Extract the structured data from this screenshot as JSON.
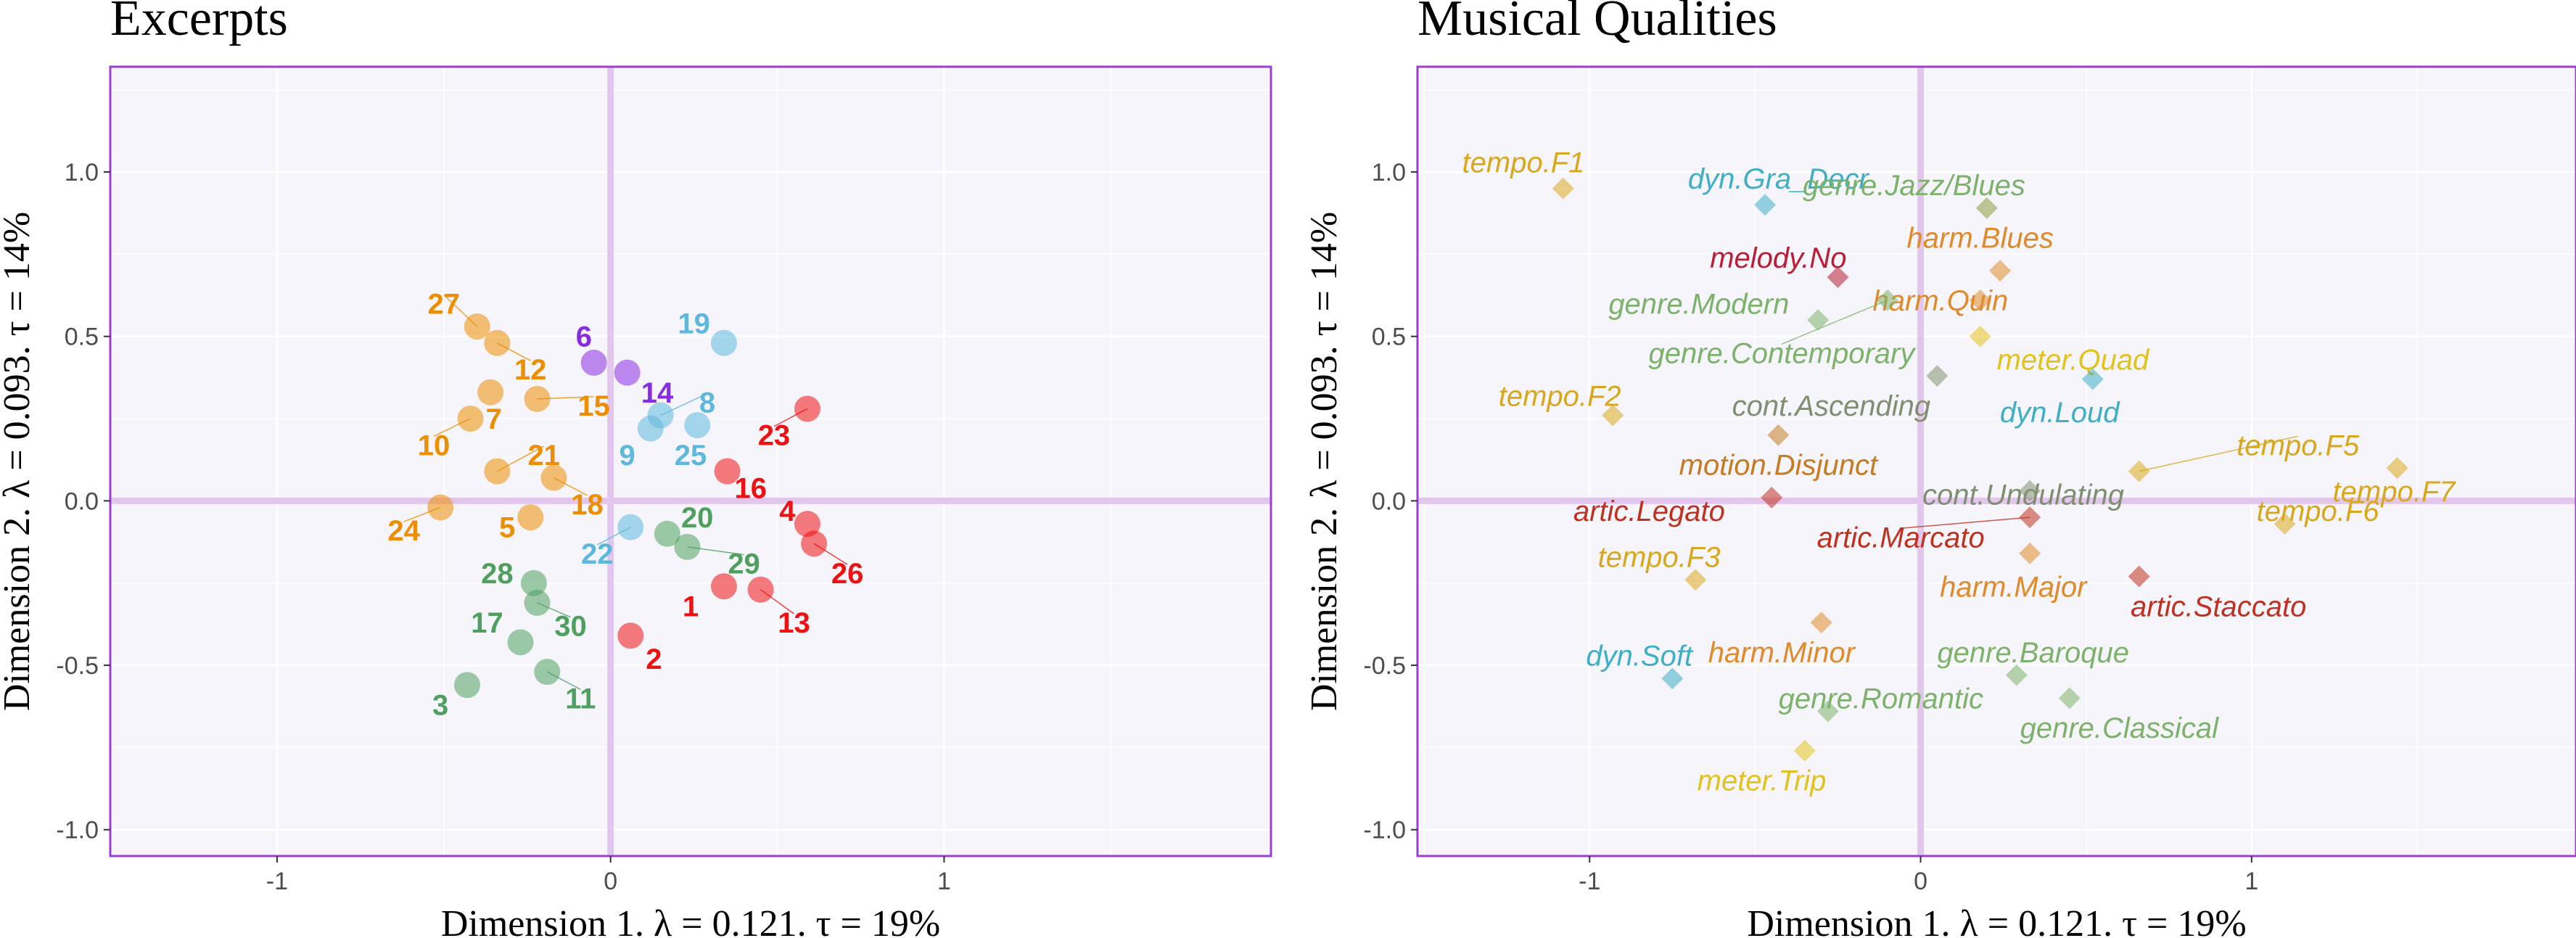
{
  "chart_data": [
    {
      "type": "scatter",
      "title": "Excerpts",
      "xlabel": "Dimension 1.   λ = 0.121.   τ = 19%",
      "ylabel": "Dimension 2.   λ = 0.093.   τ = 14%",
      "xlim": [
        -1.5,
        1.98
      ],
      "ylim": [
        -1.08,
        1.32
      ],
      "xticks": [
        {
          "value": -1,
          "label": "-1"
        },
        {
          "value": 0,
          "label": "0"
        },
        {
          "value": 1,
          "label": "1"
        }
      ],
      "yticks": [
        {
          "value": -1.0,
          "label": "-1.0"
        },
        {
          "value": -0.5,
          "label": "-0.5"
        },
        {
          "value": 0.0,
          "label": "0.0"
        },
        {
          "value": 0.5,
          "label": "0.5"
        },
        {
          "value": 1.0,
          "label": "1.0"
        }
      ],
      "colors": {
        "orange": "#ED8E00",
        "purple": "#8A2BE2",
        "blue": "#5DB8DC",
        "green": "#4FA05F",
        "red": "#EE1111"
      },
      "points": [
        {
          "id": "27",
          "x": -0.4,
          "y": 0.53,
          "group": "orange",
          "lx": -0.5,
          "ly": 0.6
        },
        {
          "id": "12",
          "x": -0.34,
          "y": 0.48,
          "group": "orange",
          "lx": -0.24,
          "ly": 0.4
        },
        {
          "id": "7",
          "x": -0.36,
          "y": 0.33,
          "group": "orange",
          "lx": -0.35,
          "ly": 0.25
        },
        {
          "id": "15",
          "x": -0.22,
          "y": 0.31,
          "group": "orange",
          "lx": -0.05,
          "ly": 0.29
        },
        {
          "id": "10",
          "x": -0.42,
          "y": 0.25,
          "group": "orange",
          "lx": -0.53,
          "ly": 0.17
        },
        {
          "id": "21",
          "x": -0.34,
          "y": 0.09,
          "group": "orange",
          "lx": -0.2,
          "ly": 0.14
        },
        {
          "id": "18",
          "x": -0.17,
          "y": 0.07,
          "group": "orange",
          "lx": -0.07,
          "ly": -0.01
        },
        {
          "id": "24",
          "x": -0.51,
          "y": -0.02,
          "group": "orange",
          "lx": -0.62,
          "ly": -0.09
        },
        {
          "id": "5",
          "x": -0.24,
          "y": -0.05,
          "group": "orange",
          "lx": -0.31,
          "ly": -0.08
        },
        {
          "id": "6",
          "x": -0.05,
          "y": 0.42,
          "group": "purple",
          "lx": -0.08,
          "ly": 0.5
        },
        {
          "id": "14",
          "x": 0.05,
          "y": 0.39,
          "group": "purple",
          "lx": 0.14,
          "ly": 0.33
        },
        {
          "id": "19",
          "x": 0.34,
          "y": 0.48,
          "group": "blue",
          "lx": 0.25,
          "ly": 0.54
        },
        {
          "id": "8",
          "x": 0.15,
          "y": 0.26,
          "group": "blue",
          "lx": 0.29,
          "ly": 0.3
        },
        {
          "id": "25",
          "x": 0.26,
          "y": 0.23,
          "group": "blue",
          "lx": 0.24,
          "ly": 0.14
        },
        {
          "id": "9",
          "x": 0.12,
          "y": 0.22,
          "group": "blue",
          "lx": 0.05,
          "ly": 0.14
        },
        {
          "id": "22",
          "x": 0.06,
          "y": -0.08,
          "group": "blue",
          "lx": -0.04,
          "ly": -0.16
        },
        {
          "id": "20",
          "x": 0.17,
          "y": -0.1,
          "group": "green",
          "lx": 0.26,
          "ly": -0.05
        },
        {
          "id": "29",
          "x": 0.23,
          "y": -0.14,
          "group": "green",
          "lx": 0.4,
          "ly": -0.19
        },
        {
          "id": "28",
          "x": -0.23,
          "y": -0.25,
          "group": "green",
          "lx": -0.34,
          "ly": -0.22
        },
        {
          "id": "17",
          "x": -0.27,
          "y": -0.43,
          "group": "green",
          "lx": -0.37,
          "ly": -0.37
        },
        {
          "id": "30",
          "x": -0.22,
          "y": -0.31,
          "group": "green",
          "lx": -0.12,
          "ly": -0.38
        },
        {
          "id": "3",
          "x": -0.43,
          "y": -0.56,
          "group": "green",
          "lx": -0.51,
          "ly": -0.62
        },
        {
          "id": "11",
          "x": -0.19,
          "y": -0.52,
          "group": "green",
          "lx": -0.09,
          "ly": -0.6
        },
        {
          "id": "23",
          "x": 0.59,
          "y": 0.28,
          "group": "red",
          "lx": 0.49,
          "ly": 0.2
        },
        {
          "id": "16",
          "x": 0.35,
          "y": 0.09,
          "group": "red",
          "lx": 0.42,
          "ly": 0.04
        },
        {
          "id": "4",
          "x": 0.59,
          "y": -0.07,
          "group": "red",
          "lx": 0.53,
          "ly": -0.03
        },
        {
          "id": "26",
          "x": 0.61,
          "y": -0.13,
          "group": "red",
          "lx": 0.71,
          "ly": -0.22
        },
        {
          "id": "1",
          "x": 0.34,
          "y": -0.26,
          "group": "red",
          "lx": 0.24,
          "ly": -0.32
        },
        {
          "id": "13",
          "x": 0.45,
          "y": -0.27,
          "group": "red",
          "lx": 0.55,
          "ly": -0.37
        },
        {
          "id": "2",
          "x": 0.06,
          "y": -0.41,
          "group": "red",
          "lx": 0.13,
          "ly": -0.48
        }
      ]
    },
    {
      "type": "scatter",
      "title": "Musical Qualities",
      "xlabel": "Dimension 1.   λ = 0.121.   τ = 19%",
      "ylabel": "Dimension 2.   λ = 0.093.   τ = 14%",
      "xlim": [
        -1.52,
        1.98
      ],
      "ylim": [
        -1.08,
        1.32
      ],
      "xticks": [
        {
          "value": -1,
          "label": "-1"
        },
        {
          "value": 0,
          "label": "0"
        },
        {
          "value": 1,
          "label": "1"
        }
      ],
      "yticks": [
        {
          "value": -1.0,
          "label": "-1.0"
        },
        {
          "value": -0.5,
          "label": "-0.5"
        },
        {
          "value": 0.0,
          "label": "0.0"
        },
        {
          "value": 0.5,
          "label": "0.5"
        },
        {
          "value": 1.0,
          "label": "1.0"
        }
      ],
      "colors": {
        "tempo": "#D9A71C",
        "dyn": "#3EAFC6",
        "genre": "#7DB26A",
        "genreDark": "#8A9A3A",
        "harm": "#E08A2A",
        "melody": "#B81E36",
        "meter": "#E2C21C",
        "cont": "#7F8F70",
        "artic": "#C0301E",
        "motion": "#C87A20"
      },
      "points": [
        {
          "id": "tempo.F1",
          "x": -1.08,
          "y": 0.95,
          "group": "tempo",
          "lx": -1.2,
          "ly": 1.03
        },
        {
          "id": "dyn.Gra_Decr",
          "x": -0.47,
          "y": 0.9,
          "group": "dyn",
          "lx": -0.43,
          "ly": 0.98
        },
        {
          "id": "genre.Jazz/Blues",
          "x": 0.2,
          "y": 0.89,
          "group": "genreDark",
          "color": "genre",
          "lx": -0.02,
          "ly": 0.96
        },
        {
          "id": "harm.Blues",
          "x": 0.24,
          "y": 0.7,
          "group": "harm",
          "lx": 0.18,
          "ly": 0.8
        },
        {
          "id": "melody.No",
          "x": -0.25,
          "y": 0.68,
          "group": "melody",
          "lx": -0.43,
          "ly": 0.74
        },
        {
          "id": "harm.Quin",
          "x": 0.18,
          "y": 0.61,
          "group": "harm",
          "lx": 0.06,
          "ly": 0.61
        },
        {
          "id": "genre.Modern",
          "x": -0.31,
          "y": 0.55,
          "group": "genre",
          "lx": -0.67,
          "ly": 0.6
        },
        {
          "id": "genre.Contemporary",
          "x": -0.1,
          "y": 0.61,
          "group": "genre",
          "lx": -0.42,
          "ly": 0.45,
          "line": true
        },
        {
          "id": "meter.Quad",
          "x": 0.18,
          "y": 0.5,
          "group": "meter",
          "lx": 0.46,
          "ly": 0.43
        },
        {
          "id": "dyn.Loud",
          "x": 0.52,
          "y": 0.37,
          "group": "dyn",
          "lx": 0.42,
          "ly": 0.27
        },
        {
          "id": "tempo.F2",
          "x": -0.93,
          "y": 0.26,
          "group": "tempo",
          "lx": -1.09,
          "ly": 0.32
        },
        {
          "id": "cont.Ascending",
          "x": 0.05,
          "y": 0.38,
          "group": "cont",
          "lx": -0.27,
          "ly": 0.29
        },
        {
          "id": "motion.Disjunct",
          "x": -0.43,
          "y": 0.2,
          "group": "motion",
          "lx": -0.43,
          "ly": 0.11
        },
        {
          "id": "tempo.F5",
          "x": 0.66,
          "y": 0.09,
          "group": "tempo",
          "lx": 1.14,
          "ly": 0.17,
          "line": true
        },
        {
          "id": "tempo.F7",
          "x": 1.44,
          "y": 0.1,
          "group": "tempo",
          "lx": 1.43,
          "ly": 0.03
        },
        {
          "id": "cont.Undulating",
          "x": 0.33,
          "y": 0.03,
          "group": "cont",
          "lx": 0.31,
          "ly": 0.02
        },
        {
          "id": "artic.Legato",
          "x": -0.45,
          "y": 0.01,
          "group": "artic",
          "lx": -0.82,
          "ly": -0.03
        },
        {
          "id": "tempo.F6",
          "x": 1.1,
          "y": -0.07,
          "group": "tempo",
          "lx": 1.2,
          "ly": -0.03
        },
        {
          "id": "artic.Marcato",
          "x": 0.33,
          "y": -0.05,
          "group": "artic",
          "lx": -0.06,
          "ly": -0.11,
          "line": true
        },
        {
          "id": "tempo.F3",
          "x": -0.68,
          "y": -0.24,
          "group": "tempo",
          "lx": -0.79,
          "ly": -0.17
        },
        {
          "id": "harm.Major",
          "x": 0.33,
          "y": -0.16,
          "group": "harm",
          "lx": 0.28,
          "ly": -0.26
        },
        {
          "id": "artic.Staccato",
          "x": 0.66,
          "y": -0.23,
          "group": "artic",
          "lx": 0.9,
          "ly": -0.32
        },
        {
          "id": "harm.Minor",
          "x": -0.3,
          "y": -0.37,
          "group": "harm",
          "lx": -0.42,
          "ly": -0.46
        },
        {
          "id": "dyn.Soft",
          "x": -0.75,
          "y": -0.54,
          "group": "dyn",
          "lx": -0.85,
          "ly": -0.47
        },
        {
          "id": "genre.Baroque",
          "x": 0.29,
          "y": -0.53,
          "group": "genre",
          "lx": 0.34,
          "ly": -0.46
        },
        {
          "id": "genre.Romantic",
          "x": -0.28,
          "y": -0.64,
          "group": "genre",
          "lx": -0.12,
          "ly": -0.6
        },
        {
          "id": "genre.Classical",
          "x": 0.45,
          "y": -0.6,
          "group": "genre",
          "lx": 0.6,
          "ly": -0.69
        },
        {
          "id": "meter.Trip",
          "x": -0.35,
          "y": -0.76,
          "group": "meter",
          "lx": -0.48,
          "ly": -0.85
        }
      ]
    }
  ]
}
